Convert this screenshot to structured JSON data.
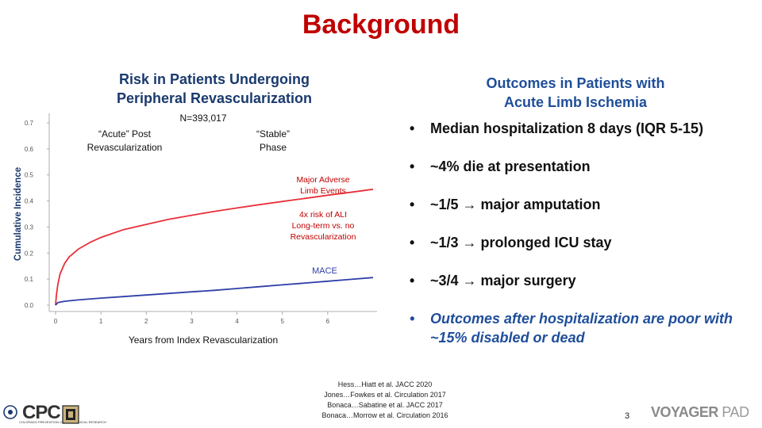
{
  "slide": {
    "title": "Background",
    "page_number": "3"
  },
  "left_panel": {
    "subtitle_line1": "Risk in Patients Undergoing",
    "subtitle_line2": "Peripheral Revascularization"
  },
  "right_panel": {
    "subtitle_line1": "Outcomes in Patients with",
    "subtitle_line2": "Acute Limb Ischemia",
    "bullets": [
      {
        "text": "Median hospitalization 8 days (IQR 5-15)"
      },
      {
        "text": "~4% die at presentation"
      },
      {
        "text": "~1/5 → major amputation"
      },
      {
        "text": "~1/3 → prolonged ICU stay"
      },
      {
        "text": "~3/4 → major surgery"
      },
      {
        "text": "Outcomes after hospitalization are poor with ~15% disabled or dead"
      }
    ]
  },
  "references": [
    "Hess…Hiatt et al. JACC 2020",
    "Jones…Fowkes et al. Circulation 2017",
    "Bonaca…Sabatine et al. JACC 2017",
    "Bonaca…Morrow et al. Circulation 2016"
  ],
  "logos": {
    "left": "CPC",
    "left_tagline": "COLORADO PREVENTION CENTER CLINICAL RESEARCH",
    "right_main": "VOYAGER",
    "right_suffix": "PAD"
  },
  "chart_data": {
    "type": "line",
    "title": "",
    "xlabel": "Years from Index Revascularization",
    "ylabel": "Cumulative Incidence",
    "xlim": [
      0,
      7
    ],
    "ylim": [
      0,
      0.7
    ],
    "x_ticks": [
      0,
      1,
      2,
      3,
      4,
      5,
      6
    ],
    "y_ticks": [
      0.0,
      0.1,
      0.2,
      0.3,
      0.4,
      0.5,
      0.6,
      0.7
    ],
    "y_tick_labels": [
      "0.0",
      "0.1",
      "0.2",
      "0.3",
      "0.4",
      "0.5",
      "0.6",
      "0.7"
    ],
    "grid": false,
    "series": [
      {
        "name": "Major Adverse Limb Events",
        "color": "#e8303a",
        "x": [
          0,
          0.02,
          0.05,
          0.1,
          0.2,
          0.3,
          0.5,
          0.75,
          1.0,
          1.5,
          2.0,
          2.5,
          3.0,
          3.5,
          4.0,
          4.5,
          5.0,
          5.5,
          6.0,
          6.5,
          7.0
        ],
        "y": [
          0,
          0.04,
          0.08,
          0.12,
          0.16,
          0.185,
          0.215,
          0.24,
          0.26,
          0.29,
          0.31,
          0.33,
          0.345,
          0.36,
          0.373,
          0.386,
          0.398,
          0.41,
          0.422,
          0.433,
          0.445
        ]
      },
      {
        "name": "MACE",
        "color": "#2f3fa8",
        "x": [
          0,
          0.05,
          0.2,
          0.5,
          1.0,
          1.5,
          2.0,
          2.5,
          3.0,
          3.5,
          4.0,
          4.5,
          5.0,
          5.5,
          6.0,
          6.5,
          7.0
        ],
        "y": [
          0,
          0.01,
          0.015,
          0.02,
          0.027,
          0.033,
          0.039,
          0.045,
          0.051,
          0.057,
          0.064,
          0.071,
          0.078,
          0.085,
          0.092,
          0.099,
          0.106
        ]
      }
    ],
    "annotations": {
      "n": "N=393,017",
      "acute_line1": "“Acute” Post",
      "acute_line2": "Revascularization",
      "stable_line1": "“Stable”",
      "stable_line2": "Phase",
      "male_line1": "Major Adverse",
      "male_line2": "Limb Events",
      "ali_line1": "4x risk of ALI",
      "ali_line2": "Long-term vs. no",
      "ali_line3": "Revascularization",
      "mace": "MACE"
    }
  }
}
